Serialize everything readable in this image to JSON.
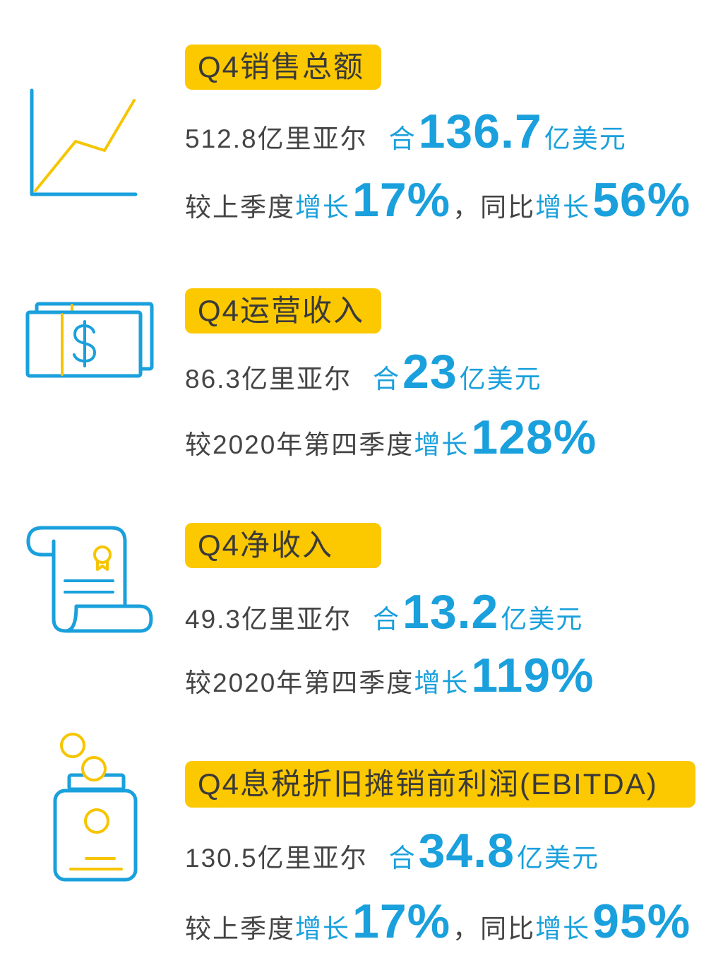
{
  "colors": {
    "accent_blue": "#1aa0dc",
    "label_yellow": "#fcc800",
    "icon_yellow": "#f6c500",
    "body_gray": "#444444",
    "label_text": "#3a3a3a"
  },
  "sections": [
    {
      "icon": "line-chart-icon",
      "label": "Q4销售总额",
      "amount": {
        "local": "512.8亿里亚尔",
        "equals": "合",
        "usd_value": "136.7",
        "usd_unit": "亿美元"
      },
      "growth": {
        "basis1": "较上季度",
        "growth_word1": "增长",
        "value1": "17%",
        "basis2": "，同比",
        "growth_word2": "增长",
        "value2": "56%"
      }
    },
    {
      "icon": "money-bill-icon",
      "label": "Q4运营收入",
      "amount": {
        "local": "86.3亿里亚尔",
        "equals": "合",
        "usd_value": "23",
        "usd_unit": "亿美元"
      },
      "growth": {
        "basis1": "较2020年第四季度",
        "growth_word1": "增长",
        "value1": "128%"
      }
    },
    {
      "icon": "scroll-certificate-icon",
      "label": "Q4净收入",
      "amount": {
        "local": "49.3亿里亚尔",
        "equals": "合",
        "usd_value": "13.2",
        "usd_unit": "亿美元"
      },
      "growth": {
        "basis1": "较2020年第四季度",
        "growth_word1": "增长",
        "value1": "119%"
      }
    },
    {
      "icon": "coin-jar-icon",
      "label": "Q4息税折旧摊销前利润(EBITDA)",
      "amount": {
        "local": "130.5亿里亚尔",
        "equals": "合",
        "usd_value": "34.8",
        "usd_unit": "亿美元"
      },
      "growth": {
        "basis1": "较上季度",
        "growth_word1": "增长",
        "value1": "17%",
        "basis2": "，同比",
        "growth_word2": "增长",
        "value2": "95%"
      }
    }
  ]
}
